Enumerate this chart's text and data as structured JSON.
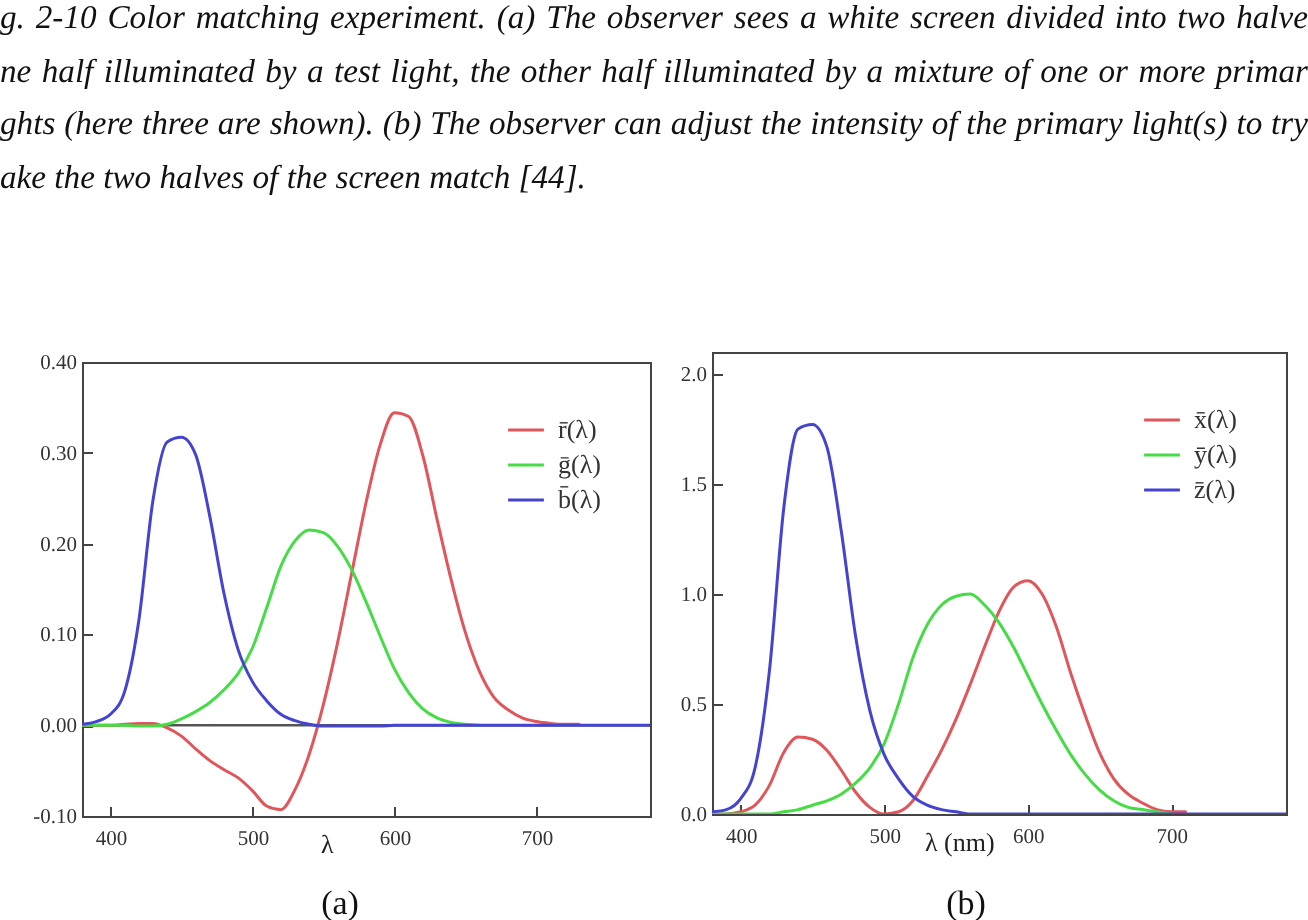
{
  "chart_data": [
    {
      "type": "other",
      "annotations": [
        "g. 2-10    Color matching experiment. (a) The observer sees a white screen divided into two halve",
        "ne half illuminated by a test light, the other half illuminated by a mixture of one or more primar",
        "ghts (here three are shown). (b) The observer can adjust the intensity of the primary light(s) to try",
        "ake the two halves of the screen match [44]."
      ]
    },
    {
      "type": "line",
      "xlabel": "λ",
      "annotations": [
        "(a)"
      ],
      "legend": "top right",
      "x": [
        380,
        390,
        400,
        410,
        420,
        430,
        440,
        450,
        460,
        470,
        480,
        490,
        500,
        510,
        520,
        530,
        540,
        550,
        560,
        570,
        580,
        590,
        600,
        610,
        620,
        630,
        640,
        650,
        660,
        670,
        680,
        690,
        700,
        710,
        720,
        730,
        740,
        750,
        760,
        770,
        780
      ],
      "series": [
        {
          "name": "r̄(λ)",
          "color": "#e0565a",
          "values": [
            0,
            0,
            0,
            0.001,
            0.002,
            0.002,
            -0.003,
            -0.012,
            -0.026,
            -0.039,
            -0.049,
            -0.058,
            -0.072,
            -0.089,
            -0.093,
            -0.071,
            -0.032,
            0.023,
            0.091,
            0.168,
            0.245,
            0.309,
            0.344,
            0.34,
            0.297,
            0.227,
            0.16,
            0.102,
            0.059,
            0.031,
            0.017,
            0.008,
            0.004,
            0.002,
            0.001,
            0.001,
            null,
            null,
            null,
            null,
            null
          ]
        },
        {
          "name": "ḡ(λ)",
          "color": "#46dc46",
          "values": [
            0,
            0,
            0,
            0,
            -0.001,
            -0.001,
            0.001,
            0.007,
            0.015,
            0.025,
            0.039,
            0.057,
            0.085,
            0.129,
            0.175,
            0.203,
            0.215,
            0.212,
            0.197,
            0.171,
            0.136,
            0.098,
            0.062,
            0.036,
            0.018,
            0.008,
            0.003,
            0.001,
            0,
            null,
            null,
            null,
            null,
            null,
            null,
            null,
            null,
            null,
            null,
            null,
            null
          ]
        },
        {
          "name": "b̄(λ)",
          "color": "#4444d0",
          "values": [
            0.001,
            0.004,
            0.012,
            0.037,
            0.115,
            0.248,
            0.312,
            0.317,
            0.298,
            0.23,
            0.145,
            0.083,
            0.048,
            0.027,
            0.012,
            0.005,
            0.001,
            -0.001,
            -0.001,
            -0.001,
            -0.001,
            -0.001,
            0,
            0,
            0,
            0,
            0,
            0,
            0,
            0,
            0,
            0,
            0,
            0,
            0,
            0,
            0,
            0,
            0,
            0,
            0
          ]
        }
      ],
      "xlim": [
        380,
        780
      ],
      "xticks": [
        400,
        500,
        600,
        700
      ],
      "ylim": [
        -0.1,
        0.4
      ],
      "yticks": [
        {
          "value": -0.1,
          "label": "-0.10"
        },
        {
          "value": 0,
          "label": "0.00"
        },
        {
          "value": 0.1,
          "label": "0.10"
        },
        {
          "value": 0.2,
          "label": "0.20"
        },
        {
          "value": 0.3,
          "label": "0.30"
        },
        {
          "value": 0.4,
          "label": "0.40"
        }
      ],
      "ref_lines": [
        {
          "axis": "y",
          "value": 0,
          "color": "#555555"
        }
      ]
    },
    {
      "type": "line",
      "xlabel": "λ (nm)",
      "annotations": [
        "(b)"
      ],
      "legend": "top right",
      "x": [
        380,
        390,
        400,
        410,
        420,
        430,
        440,
        450,
        460,
        470,
        480,
        490,
        500,
        510,
        520,
        530,
        540,
        550,
        560,
        570,
        580,
        590,
        600,
        610,
        620,
        630,
        640,
        650,
        660,
        670,
        680,
        690,
        700,
        710,
        720,
        730,
        740,
        750,
        760,
        770,
        780
      ],
      "series": [
        {
          "name": "x̄(λ)",
          "color": "#e0565a",
          "values": [
            0,
            0,
            0.01,
            0.04,
            0.13,
            0.28,
            0.35,
            0.34,
            0.29,
            0.2,
            0.1,
            0.03,
            0,
            0.01,
            0.06,
            0.17,
            0.29,
            0.43,
            0.59,
            0.76,
            0.92,
            1.03,
            1.06,
            1,
            0.85,
            0.64,
            0.45,
            0.28,
            0.16,
            0.09,
            0.05,
            0.02,
            0.01,
            0.01,
            null,
            null,
            null,
            null,
            null,
            null,
            null
          ]
        },
        {
          "name": "ȳ(λ)",
          "color": "#46dc46",
          "values": [
            0,
            0,
            0,
            0,
            0,
            0.01,
            0.02,
            0.04,
            0.06,
            0.09,
            0.14,
            0.21,
            0.32,
            0.5,
            0.71,
            0.86,
            0.95,
            0.99,
            1,
            0.95,
            0.87,
            0.76,
            0.63,
            0.5,
            0.38,
            0.27,
            0.18,
            0.11,
            0.06,
            0.03,
            0.02,
            0.01,
            0,
            null,
            null,
            null,
            null,
            null,
            null,
            null,
            null
          ]
        },
        {
          "name": "z̄(λ)",
          "color": "#4444d0",
          "values": [
            0.01,
            0.02,
            0.07,
            0.21,
            0.65,
            1.39,
            1.75,
            1.77,
            1.67,
            1.29,
            0.81,
            0.47,
            0.27,
            0.16,
            0.08,
            0.04,
            0.02,
            0.01,
            0,
            0,
            0,
            0,
            0,
            0,
            0,
            0,
            0,
            0,
            0,
            0,
            0,
            0,
            0,
            0,
            0,
            0,
            0,
            0,
            0,
            0,
            0
          ]
        }
      ],
      "xlim": [
        380,
        780
      ],
      "xticks": [
        400,
        500,
        600,
        700
      ],
      "ylim": [
        0,
        2.1
      ],
      "yticks": [
        {
          "value": 0,
          "label": "0.0"
        },
        0.5,
        {
          "value": 1,
          "label": "1.0"
        },
        1.5,
        {
          "value": 2,
          "label": "2.0"
        }
      ]
    }
  ]
}
